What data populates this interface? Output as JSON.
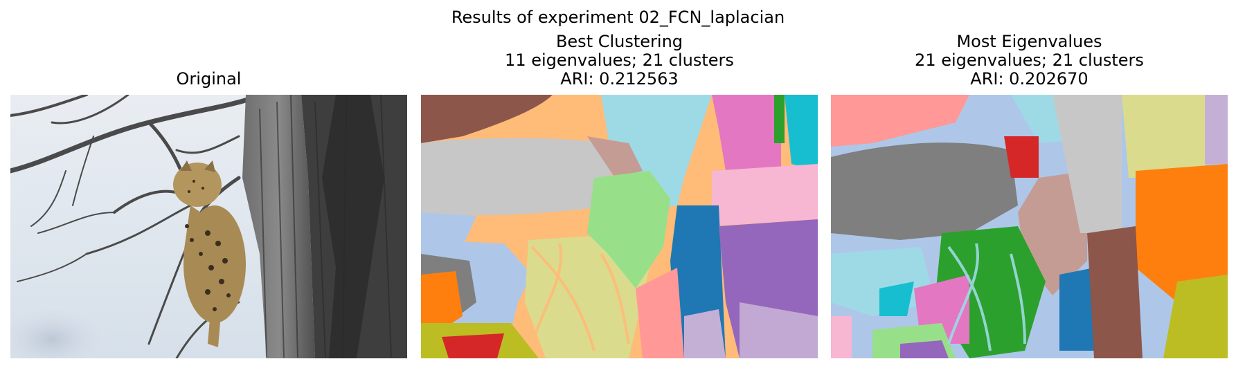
{
  "figure": {
    "suptitle": "Results of experiment 02_FCN_laplacian"
  },
  "panels": [
    {
      "title_lines": [
        "Original"
      ],
      "image": "photo of a leopard lying on a tree branch"
    },
    {
      "title_lines": [
        "Best Clustering",
        "11 eigenvalues; 21 clusters",
        "ARI: 0.212563"
      ],
      "image": "cluster label map in pastel categorical colors"
    },
    {
      "title_lines": [
        "Most Eigenvalues",
        "21 eigenvalues; 21 clusters",
        "ARI: 0.202670"
      ],
      "image": "cluster label map in pastel categorical colors"
    }
  ],
  "palette": [
    "#8c564b",
    "#ffbb78",
    "#c7c7c7",
    "#9edae5",
    "#e377c2",
    "#17becf",
    "#2ca02c",
    "#c49c94",
    "#98df8a",
    "#aec7e8",
    "#1f77b4",
    "#f7b6d2",
    "#9467bd",
    "#7f7f7f",
    "#ff7f0e",
    "#dbdb8d",
    "#d62728",
    "#bcbd22",
    "#ff9896",
    "#c5b0d5"
  ]
}
